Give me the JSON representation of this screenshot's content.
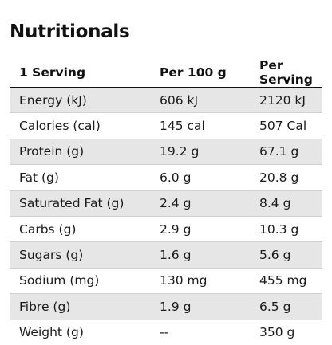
{
  "title": "Nutritionals",
  "table": {
    "headers": [
      "1 Serving",
      "Per 100 g",
      "Per Serving"
    ],
    "rows": [
      [
        "Energy (kJ)",
        "606 kJ",
        "2120 kJ"
      ],
      [
        "Calories (cal)",
        "145 cal",
        "507 Cal"
      ],
      [
        "Protein (g)",
        "19.2 g",
        "67.1 g"
      ],
      [
        "Fat (g)",
        "6.0 g",
        "20.8 g"
      ],
      [
        "Saturated Fat (g)",
        "2.4 g",
        "8.4 g"
      ],
      [
        "Carbs (g)",
        "2.9 g",
        "10.3 g"
      ],
      [
        "Sugars (g)",
        "1.6 g",
        "5.6 g"
      ],
      [
        "Sodium (mg)",
        "130 mg",
        "455 mg"
      ],
      [
        "Fibre (g)",
        "1.9 g",
        "6.5 g"
      ],
      [
        "Weight (g)",
        "--",
        "350 g"
      ]
    ]
  },
  "colors": {
    "stripe": "#e6e6e6",
    "text": "#1a1a1a",
    "header_rule": "#111111"
  }
}
